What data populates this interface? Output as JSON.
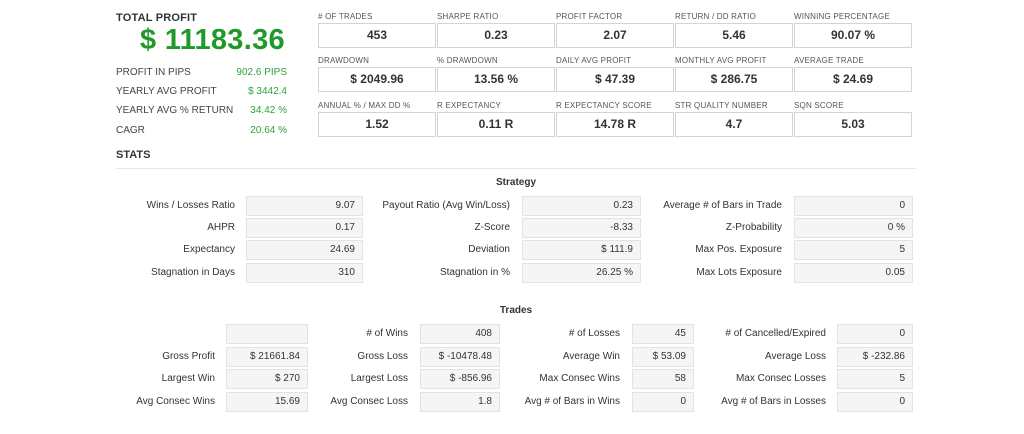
{
  "summary": {
    "total_profit_label": "TOTAL PROFIT",
    "total_profit_value": "$ 11183.36",
    "rows": [
      {
        "label": "PROFIT IN PIPS",
        "value": "902.6 PIPS"
      },
      {
        "label": "YEARLY AVG PROFIT",
        "value": "$ 3442.4"
      },
      {
        "label": "YEARLY AVG % RETURN",
        "value": "34.42 %"
      },
      {
        "label": "CAGR",
        "value": "20.64 %"
      }
    ],
    "stats_label": "STATS"
  },
  "metrics": [
    {
      "label": "# OF TRADES",
      "value": "453"
    },
    {
      "label": "SHARPE RATIO",
      "value": "0.23"
    },
    {
      "label": "PROFIT FACTOR",
      "value": "2.07"
    },
    {
      "label": "RETURN / DD RATIO",
      "value": "5.46"
    },
    {
      "label": "WINNING PERCENTAGE",
      "value": "90.07 %"
    },
    {
      "label": "DRAWDOWN",
      "value": "$ 2049.96"
    },
    {
      "label": "% DRAWDOWN",
      "value": "13.56 %"
    },
    {
      "label": "DAILY AVG PROFIT",
      "value": "$ 47.39"
    },
    {
      "label": "MONTHLY AVG PROFIT",
      "value": "$ 286.75"
    },
    {
      "label": "AVERAGE TRADE",
      "value": "$ 24.69"
    },
    {
      "label": "ANNUAL % / MAX DD %",
      "value": "1.52"
    },
    {
      "label": "R EXPECTANCY",
      "value": "0.11 R"
    },
    {
      "label": "R EXPECTANCY SCORE",
      "value": "14.78 R"
    },
    {
      "label": "STR QUALITY NUMBER",
      "value": "4.7"
    },
    {
      "label": "SQN SCORE",
      "value": "5.03"
    }
  ],
  "strategy": {
    "title": "Strategy",
    "rows": [
      [
        {
          "label": "Wins / Losses Ratio",
          "value": "9.07"
        },
        {
          "label": "Payout Ratio (Avg Win/Loss)",
          "value": "0.23"
        },
        {
          "label": "Average # of Bars in Trade",
          "value": "0"
        }
      ],
      [
        {
          "label": "AHPR",
          "value": "0.17"
        },
        {
          "label": "Z-Score",
          "value": "-8.33"
        },
        {
          "label": "Z-Probability",
          "value": "0 %"
        }
      ],
      [
        {
          "label": "Expectancy",
          "value": "24.69"
        },
        {
          "label": "Deviation",
          "value": "$ 111.9"
        },
        {
          "label": "Max Pos. Exposure",
          "value": "5"
        }
      ],
      [
        {
          "label": "Stagnation in Days",
          "value": "310"
        },
        {
          "label": "Stagnation in %",
          "value": "26.25 %"
        },
        {
          "label": "Max Lots Exposure",
          "value": "0.05"
        }
      ]
    ]
  },
  "trades": {
    "title": "Trades",
    "rows": [
      [
        {
          "label": "",
          "value": ""
        },
        {
          "label": "# of Wins",
          "value": "408"
        },
        {
          "label": "# of Losses",
          "value": "45"
        },
        {
          "label": "# of Cancelled/Expired",
          "value": "0"
        }
      ],
      [
        {
          "label": "Gross Profit",
          "value": "$ 21661.84"
        },
        {
          "label": "Gross Loss",
          "value": "$ -10478.48"
        },
        {
          "label": "Average Win",
          "value": "$ 53.09"
        },
        {
          "label": "Average Loss",
          "value": "$ -232.86"
        }
      ],
      [
        {
          "label": "Largest Win",
          "value": "$ 270"
        },
        {
          "label": "Largest Loss",
          "value": "$ -856.96"
        },
        {
          "label": "Max Consec Wins",
          "value": "58"
        },
        {
          "label": "Max Consec Losses",
          "value": "5"
        }
      ],
      [
        {
          "label": "Avg Consec Wins",
          "value": "15.69"
        },
        {
          "label": "Avg Consec Loss",
          "value": "1.8"
        },
        {
          "label": "Avg # of Bars in Wins",
          "value": "0"
        },
        {
          "label": "Avg # of Bars in Losses",
          "value": "0"
        }
      ]
    ]
  }
}
